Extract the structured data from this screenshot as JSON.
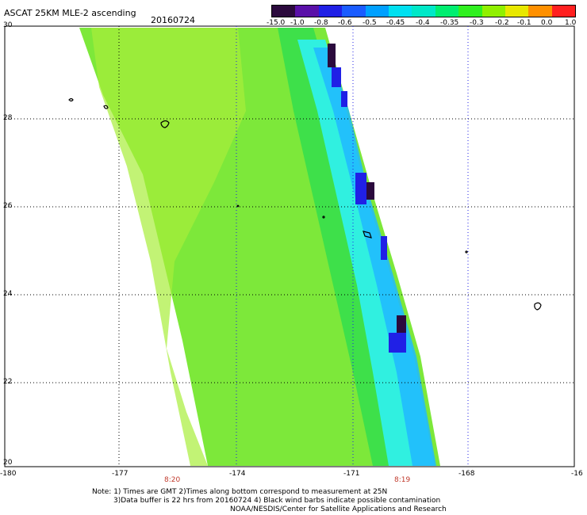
{
  "header": {
    "title": "ASCAT 25KM MLE-2 ascending",
    "date": "20160724"
  },
  "colorbar": {
    "labels": [
      "-15.0",
      "-1.0",
      "-0.8",
      "-0.6",
      "-0.5",
      "-0.45",
      "-0.4",
      "-0.35",
      "-0.3",
      "-0.2",
      "-0.1",
      "0.0",
      "1.0"
    ],
    "colors": [
      "#2b0a3d",
      "#5a10a8",
      "#2020e6",
      "#1a5cff",
      "#00a0ff",
      "#00e0f0",
      "#00e8c8",
      "#00ee70",
      "#30f020",
      "#90f000",
      "#e8e800",
      "#ff9000",
      "#ff2020"
    ]
  },
  "axes": {
    "lat_labels": [
      "30",
      "28",
      "26",
      "24",
      "22",
      "20"
    ],
    "lon_labels": [
      "-180",
      "-177",
      "-174",
      "-171",
      "-168",
      "-16"
    ],
    "time_labels": [
      "8:20",
      "8:19"
    ]
  },
  "footer": {
    "note1": "Note: 1) Times are GMT 2)Times along bottom correspond to measurement at 25N",
    "note2": "3)Data buffer is 22 hrs from 20160724 4) Black wind barbs indicate possible contamination",
    "credit": "NOAA/NESDIS/Center for Satellite Applications and Research"
  }
}
